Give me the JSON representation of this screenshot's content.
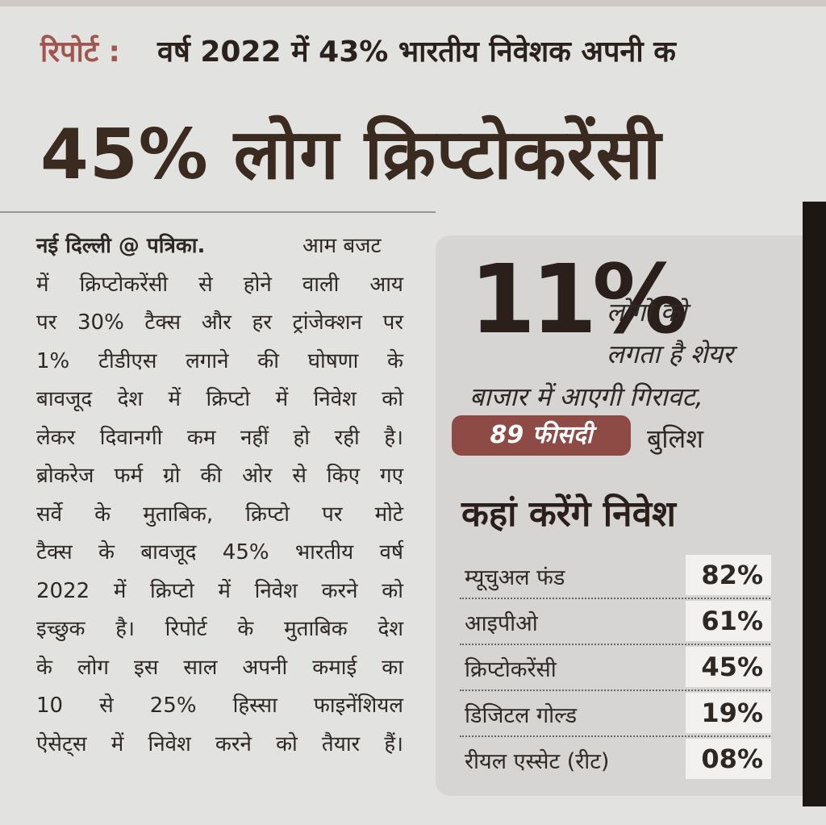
{
  "kicker": {
    "label": "रिपोर्ट :",
    "text": "वर्ष 2022 में 43% भारतीय निवेशक अपनी क"
  },
  "headline": "45% लोग क्रिप्टोकरेंसी",
  "article": {
    "dateline": "नई दिल्ली @ पत्रिका.",
    "lines": [
      "आम बजट",
      "में क्रिप्टोकरेंसी से होने वाली आय",
      "पर 30% टैक्स और हर ट्रांजेक्शन पर",
      "1% टीडीएस लगाने की घोषणा के",
      "बावजूद देश में क्रिप्टो में निवेश को",
      "लेकर दिवानगी कम नहीं हो रही है।",
      "ब्रोकरेज फर्म ग्रो की ओर से किए गए",
      "सर्वे के मुताबिक, क्रिप्टो पर मोटे",
      "टैक्स के बावजूद 45% भारतीय वर्ष",
      "2022 में क्रिप्टो में निवेश करने को",
      "इच्छुक है। रिपोर्ट के मुताबिक देश",
      "के लोग इस साल अपनी कमाई का",
      "10 से 25% हिस्सा फाइनेंशियल",
      "ऐसेट्स में निवेश करने को तैयार हैं।"
    ]
  },
  "sidebar": {
    "stat": "11%",
    "stat_lines": [
      "लोगों को",
      "लगता है शेयर",
      "बाजार में आएगी गिरावट,"
    ],
    "badge": "89 फीसदी",
    "badge_text": "बुलिश",
    "table": {
      "title": "कहां करेंगे निवेश",
      "rows": [
        [
          "म्यूचुअल फंड",
          "82%"
        ],
        [
          "आइपीओ",
          "61%"
        ],
        [
          "क्रिप्टोकरेंसी",
          "45%"
        ],
        [
          "डिजिटल गोल्ड",
          "19%"
        ],
        [
          "रीयल एस्सेट (रीट)",
          "08%"
        ]
      ]
    }
  }
}
